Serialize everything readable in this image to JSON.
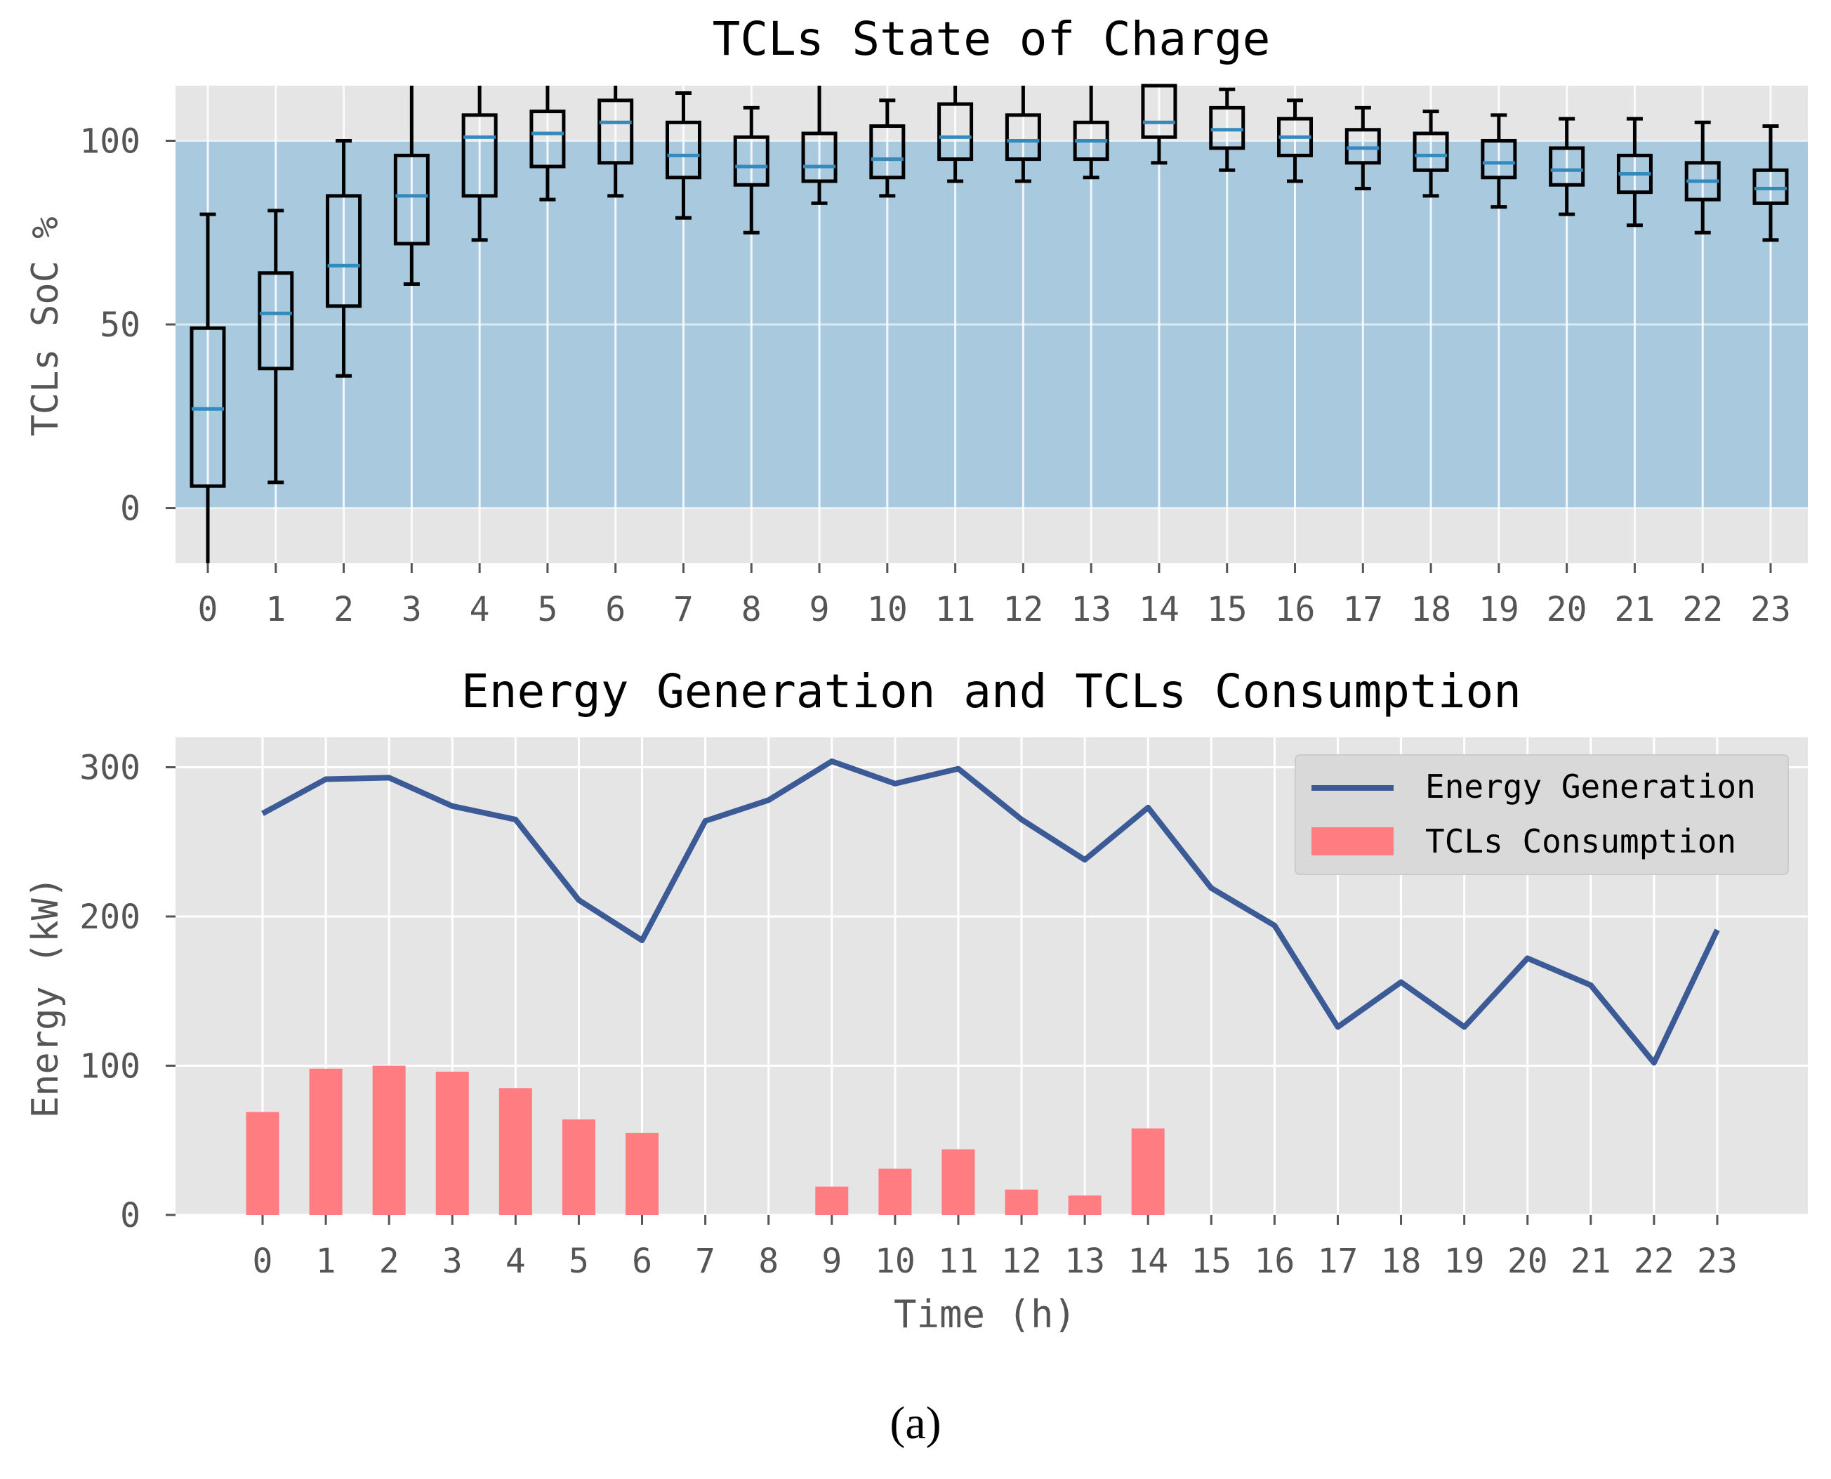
{
  "chart_data": [
    {
      "type": "box",
      "title": "TCLs State of Charge",
      "xlabel": "",
      "ylabel": "TCLs SoC %",
      "ylim": [
        -15,
        115
      ],
      "yticks": [
        0,
        50,
        100
      ],
      "comfort_band": [
        0,
        100
      ],
      "grid": true,
      "categories": [
        "0",
        "1",
        "2",
        "3",
        "4",
        "5",
        "6",
        "7",
        "8",
        "9",
        "10",
        "11",
        "12",
        "13",
        "14",
        "15",
        "16",
        "17",
        "18",
        "19",
        "20",
        "21",
        "22",
        "23"
      ],
      "boxes": [
        {
          "whislo": -15,
          "q1": 6,
          "med": 27,
          "q3": 49,
          "whishi": 80
        },
        {
          "whislo": 7,
          "q1": 38,
          "med": 53,
          "q3": 64,
          "whishi": 81
        },
        {
          "whislo": 36,
          "q1": 55,
          "med": 66,
          "q3": 85,
          "whishi": 100
        },
        {
          "whislo": 61,
          "q1": 72,
          "med": 85,
          "q3": 96,
          "whishi": 115
        },
        {
          "whislo": 73,
          "q1": 85,
          "med": 101,
          "q3": 107,
          "whishi": 115
        },
        {
          "whislo": 84,
          "q1": 93,
          "med": 102,
          "q3": 108,
          "whishi": 115
        },
        {
          "whislo": 85,
          "q1": 94,
          "med": 105,
          "q3": 111,
          "whishi": 115
        },
        {
          "whislo": 79,
          "q1": 90,
          "med": 96,
          "q3": 105,
          "whishi": 113
        },
        {
          "whislo": 75,
          "q1": 88,
          "med": 93,
          "q3": 101,
          "whishi": 109
        },
        {
          "whislo": 83,
          "q1": 89,
          "med": 93,
          "q3": 102,
          "whishi": 115
        },
        {
          "whislo": 85,
          "q1": 90,
          "med": 95,
          "q3": 104,
          "whishi": 111
        },
        {
          "whislo": 89,
          "q1": 95,
          "med": 101,
          "q3": 110,
          "whishi": 115
        },
        {
          "whislo": 89,
          "q1": 95,
          "med": 100,
          "q3": 107,
          "whishi": 115
        },
        {
          "whislo": 90,
          "q1": 95,
          "med": 100,
          "q3": 105,
          "whishi": 115
        },
        {
          "whislo": 94,
          "q1": 101,
          "med": 105,
          "q3": 115,
          "whishi": 115
        },
        {
          "whislo": 92,
          "q1": 98,
          "med": 103,
          "q3": 109,
          "whishi": 114
        },
        {
          "whislo": 89,
          "q1": 96,
          "med": 101,
          "q3": 106,
          "whishi": 111
        },
        {
          "whislo": 87,
          "q1": 94,
          "med": 98,
          "q3": 103,
          "whishi": 109
        },
        {
          "whislo": 85,
          "q1": 92,
          "med": 96,
          "q3": 102,
          "whishi": 108
        },
        {
          "whislo": 82,
          "q1": 90,
          "med": 94,
          "q3": 100,
          "whishi": 107
        },
        {
          "whislo": 80,
          "q1": 88,
          "med": 92,
          "q3": 98,
          "whishi": 106
        },
        {
          "whislo": 77,
          "q1": 86,
          "med": 91,
          "q3": 96,
          "whishi": 106
        },
        {
          "whislo": 75,
          "q1": 84,
          "med": 89,
          "q3": 94,
          "whishi": 105
        },
        {
          "whislo": 73,
          "q1": 83,
          "med": 87,
          "q3": 92,
          "whishi": 104
        }
      ]
    },
    {
      "type": "bar+line",
      "title": "Energy Generation and TCLs Consumption",
      "xlabel": "Time (h)",
      "ylabel": "Energy (kW)",
      "ylim": [
        0,
        320
      ],
      "yticks": [
        0,
        100,
        200,
        300
      ],
      "grid": true,
      "legend_position": "top-right",
      "categories": [
        "0",
        "1",
        "2",
        "3",
        "4",
        "5",
        "6",
        "7",
        "8",
        "9",
        "10",
        "11",
        "12",
        "13",
        "14",
        "15",
        "16",
        "17",
        "18",
        "19",
        "20",
        "21",
        "22",
        "23"
      ],
      "series": [
        {
          "name": "Energy Generation",
          "kind": "line",
          "values": [
            269,
            292,
            293,
            274,
            265,
            211,
            184,
            264,
            278,
            304,
            289,
            299,
            265,
            238,
            273,
            219,
            194,
            126,
            156,
            126,
            172,
            154,
            102,
            191
          ]
        },
        {
          "name": "TCLs Consumption",
          "kind": "bar",
          "values": [
            69,
            98,
            100,
            96,
            85,
            64,
            55,
            0,
            0,
            19,
            31,
            44,
            17,
            13,
            58,
            0,
            0,
            0,
            0,
            0,
            0,
            0,
            0,
            0
          ]
        }
      ]
    }
  ],
  "caption": "(a)",
  "colors": {
    "panel_bg": "#e5e5e5",
    "comfort_band": "#a9cade",
    "median": "#348abd",
    "line": "#3b5a96",
    "bar": "#ff7c80",
    "grid": "#ffffff"
  }
}
